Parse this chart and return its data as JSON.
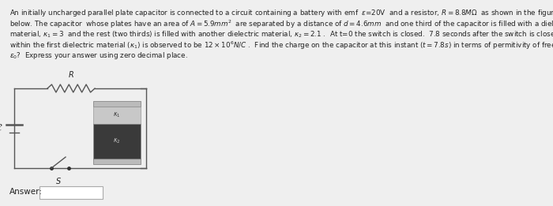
{
  "bg_color": "#efefef",
  "text_color": "#222222",
  "problem_text_lines": [
    "An initially uncharged parallel plate capacitor is connected to a circuit containing a battery with emf  $\\varepsilon$=20V  and a resistor, $R = 8.8M\\Omega$  as shown in the figure to",
    "below. The capacitor  whose plates have an area of $A = 5.9mm^2$  are separated by a distance of $d = 4.6mm$  and one third of the capacitor is filled with a dielectric",
    "material, $\\kappa_1 = 3$  and the rest (two thirds) is filled with another dielectric material, $\\kappa_2 = 2.1$ .  At t=0 the switch is closed.  $7.8$ seconds after the switch is closed the electric field",
    "within the first dielectric material ($\\kappa_1$) is observed to be $12 \\times 10^6 N/C$ .  Find the charge on the capacitor at this instant ($t = 7.8s$) in terms of permitivity of free space",
    "$\\varepsilon_0$?  Express your answer using zero decimal place."
  ],
  "answer_label": "Answer:",
  "cap_label1": "$\\kappa_1$",
  "cap_label2": "$\\kappa_2$",
  "resistor_label": "R",
  "battery_label": "$\\mathcal{E}$",
  "switch_label": "S",
  "wire_color": "#555555",
  "plate_color": "#bbbbbb",
  "diel1_color": "#c8c8c8",
  "diel2_color": "#3a3a3a",
  "plate_edge_color": "#888888",
  "line_width": 1.0
}
